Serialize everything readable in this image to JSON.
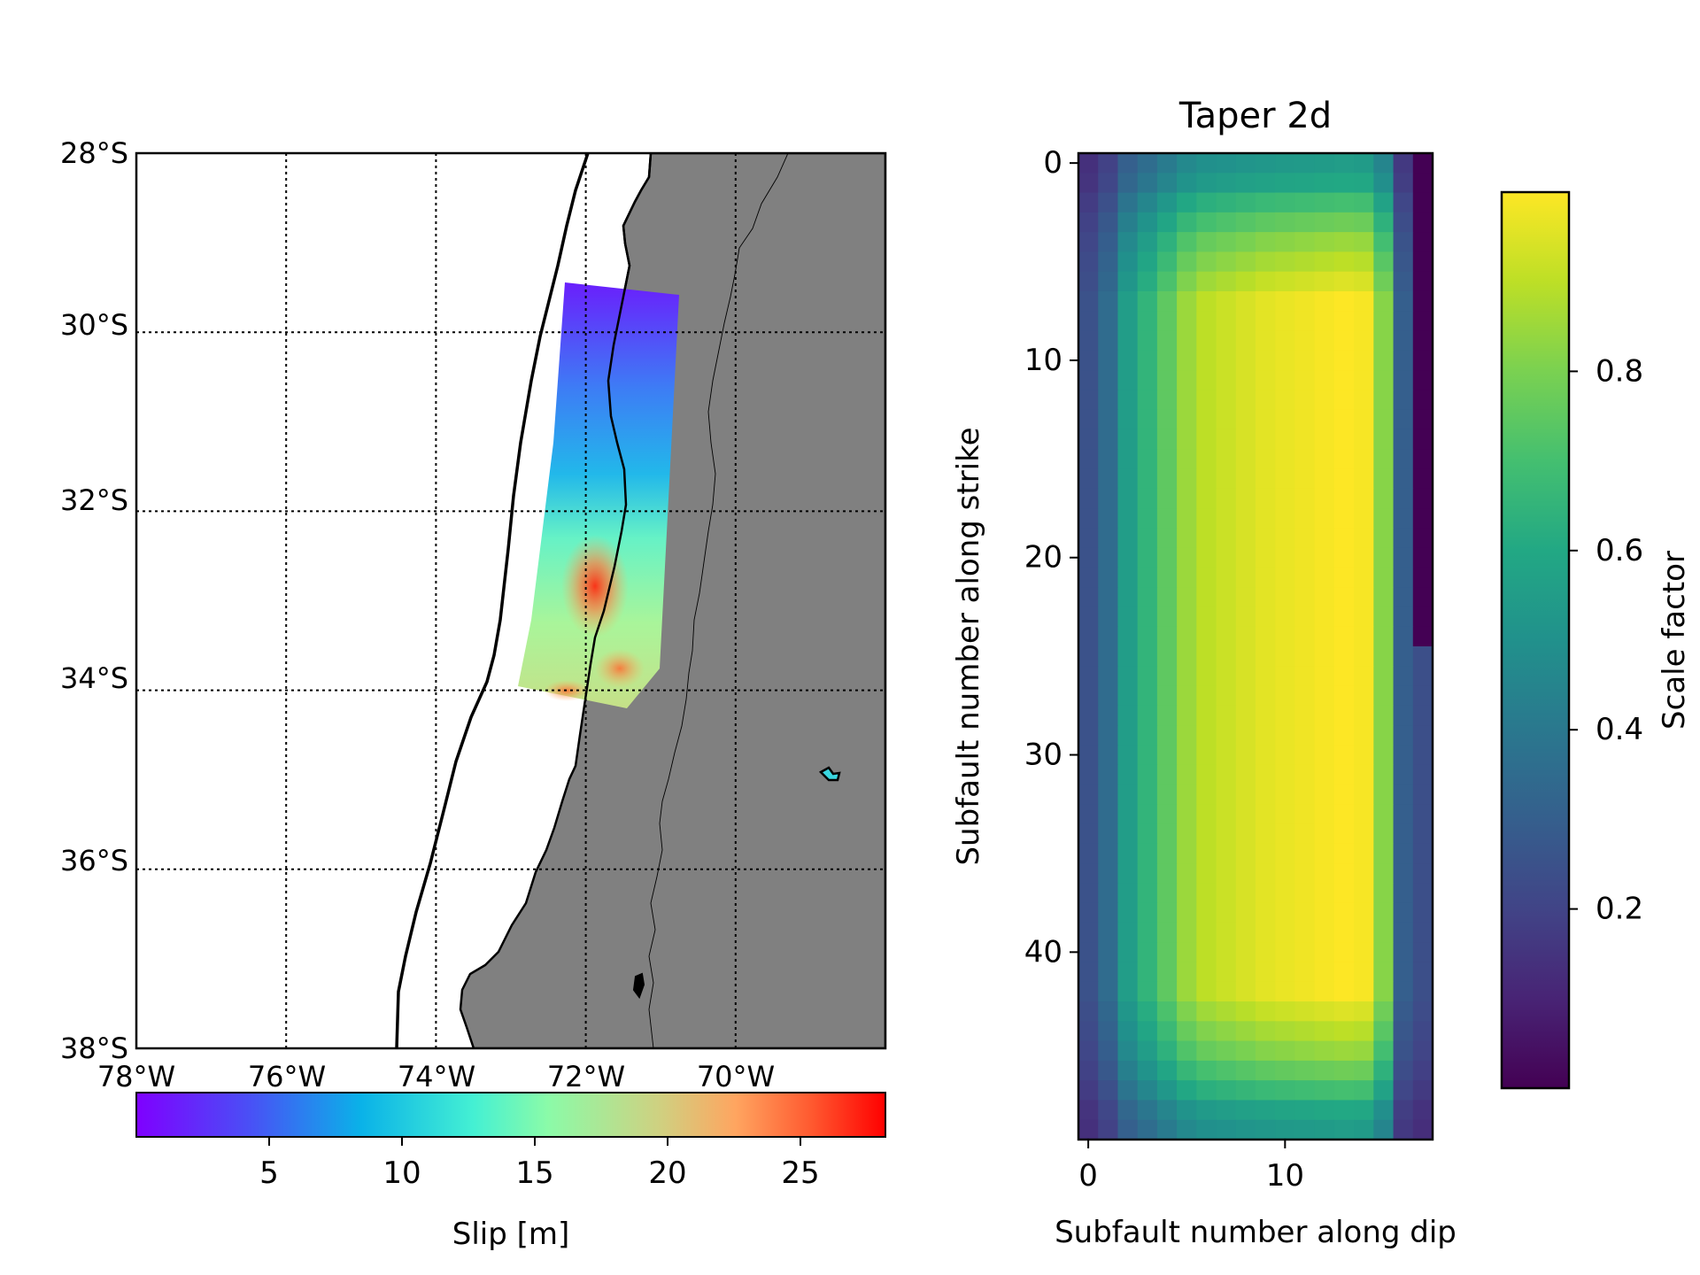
{
  "chart_data": [
    {
      "type": "map",
      "lon_ticks": [
        "78°W",
        "76°W",
        "74°W",
        "72°W",
        "70°W"
      ],
      "lat_ticks": [
        "28°S",
        "30°S",
        "32°S",
        "34°S",
        "36°S",
        "38°S"
      ],
      "lon_range": [
        -78,
        -68
      ],
      "lat_range": [
        -38,
        -28
      ],
      "grid": true,
      "land_color": "#808080",
      "colorbar": {
        "label": "Slip [m]",
        "ticks": [
          "5",
          "10",
          "15",
          "20",
          "25"
        ],
        "range": [
          0,
          28.2
        ],
        "colormap": "rainbow"
      },
      "slip_patch": {
        "corners_lon_lat": [
          [
            -72.5,
            -29.6
          ],
          [
            -70.95,
            -29.7
          ],
          [
            -71.55,
            -34.35
          ],
          [
            -73.2,
            -34.1
          ]
        ],
        "max_slip": 28,
        "max_slip_location": [
          -72.0,
          -33.1
        ]
      }
    },
    {
      "type": "heatmap",
      "title": "Taper 2d",
      "xlabel": "Subfault number along dip",
      "ylabel": "Subfault number along strike",
      "x_ticks": [
        "0",
        "10"
      ],
      "y_ticks": [
        "0",
        "10",
        "20",
        "30",
        "40"
      ],
      "ncols": 18,
      "nrows": 50,
      "colormap": "viridis",
      "colorbar": {
        "label": "Scale factor",
        "ticks": [
          "0.2",
          "0.4",
          "0.6",
          "0.8"
        ],
        "range": [
          0,
          1
        ]
      },
      "col_taper": [
        0.25,
        0.35,
        0.55,
        0.65,
        0.75,
        0.85,
        0.9,
        0.92,
        0.94,
        0.96,
        0.97,
        0.98,
        0.99,
        1.0,
        0.99,
        0.82,
        0.3,
        0.0
      ],
      "row_taper": [
        0.55,
        0.6,
        0.7,
        0.78,
        0.85,
        0.9,
        0.95,
        1.0
      ],
      "last_col_zero_rows": 25
    }
  ]
}
